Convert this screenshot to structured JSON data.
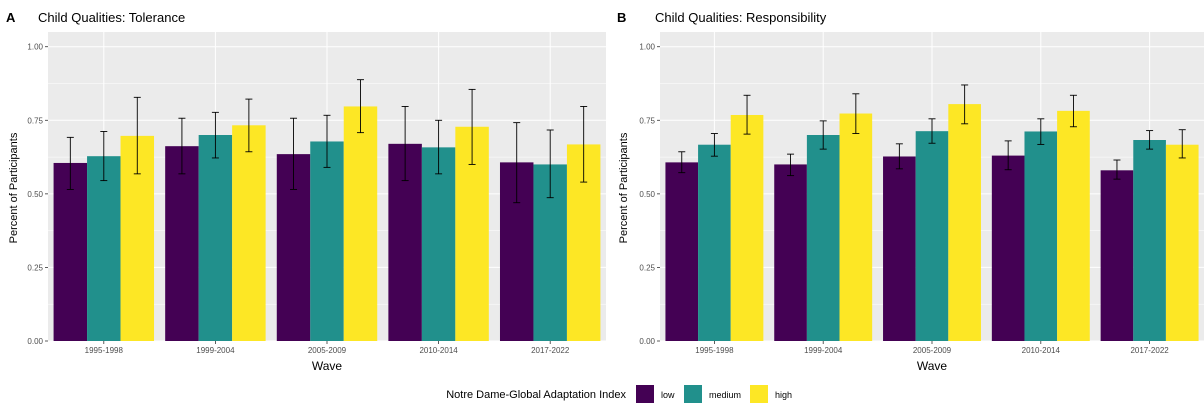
{
  "chart_data": [
    {
      "type": "bar",
      "panel_tag": "A",
      "title": "Child Qualities: Tolerance",
      "xlabel": "Wave",
      "ylabel": "Percent of Participants",
      "ylim": [
        0,
        1.05
      ],
      "yticks": [
        "0.00",
        "0.25",
        "0.50",
        "0.75",
        "1.00"
      ],
      "grid": true,
      "categories": [
        "1995-1998",
        "1999-2004",
        "2005-2009",
        "2010-2014",
        "2017-2022"
      ],
      "series": [
        {
          "name": "low",
          "values": [
            0.605,
            0.662,
            0.635,
            0.67,
            0.607
          ],
          "lower": [
            0.515,
            0.568,
            0.515,
            0.545,
            0.47
          ],
          "upper": [
            0.692,
            0.757,
            0.757,
            0.797,
            0.742
          ]
        },
        {
          "name": "medium",
          "values": [
            0.628,
            0.7,
            0.678,
            0.658,
            0.6
          ],
          "lower": [
            0.545,
            0.622,
            0.59,
            0.568,
            0.487
          ],
          "upper": [
            0.712,
            0.777,
            0.767,
            0.75,
            0.717
          ]
        },
        {
          "name": "high",
          "values": [
            0.697,
            0.733,
            0.797,
            0.728,
            0.668
          ],
          "lower": [
            0.568,
            0.643,
            0.708,
            0.6,
            0.54
          ],
          "upper": [
            0.828,
            0.822,
            0.888,
            0.855,
            0.797
          ]
        }
      ]
    },
    {
      "type": "bar",
      "panel_tag": "B",
      "title": "Child Qualities: Responsibility",
      "xlabel": "Wave",
      "ylabel": "Percent of Participants",
      "ylim": [
        0,
        1.05
      ],
      "yticks": [
        "0.00",
        "0.25",
        "0.50",
        "0.75",
        "1.00"
      ],
      "grid": true,
      "categories": [
        "1995-1998",
        "1999-2004",
        "2005-2009",
        "2010-2014",
        "2017-2022"
      ],
      "series": [
        {
          "name": "low",
          "values": [
            0.607,
            0.6,
            0.627,
            0.63,
            0.58
          ],
          "lower": [
            0.572,
            0.562,
            0.585,
            0.582,
            0.55
          ],
          "upper": [
            0.643,
            0.635,
            0.67,
            0.68,
            0.615
          ]
        },
        {
          "name": "medium",
          "values": [
            0.667,
            0.7,
            0.713,
            0.712,
            0.683
          ],
          "lower": [
            0.628,
            0.652,
            0.672,
            0.668,
            0.652
          ],
          "upper": [
            0.705,
            0.748,
            0.755,
            0.755,
            0.715
          ]
        },
        {
          "name": "high",
          "values": [
            0.768,
            0.773,
            0.805,
            0.782,
            0.667
          ],
          "lower": [
            0.703,
            0.705,
            0.738,
            0.728,
            0.622
          ],
          "upper": [
            0.835,
            0.84,
            0.87,
            0.835,
            0.718
          ]
        }
      ]
    }
  ],
  "legend": {
    "title": "Notre Dame-Global Adaptation Index",
    "position": "bottom",
    "items": [
      {
        "label": "low",
        "color": "#440154"
      },
      {
        "label": "medium",
        "color": "#21908C"
      },
      {
        "label": "high",
        "color": "#FDE725"
      }
    ]
  },
  "colors": {
    "panel_background": "#EBEBEB",
    "grid": "#FFFFFF",
    "errorbar": "#000000"
  }
}
